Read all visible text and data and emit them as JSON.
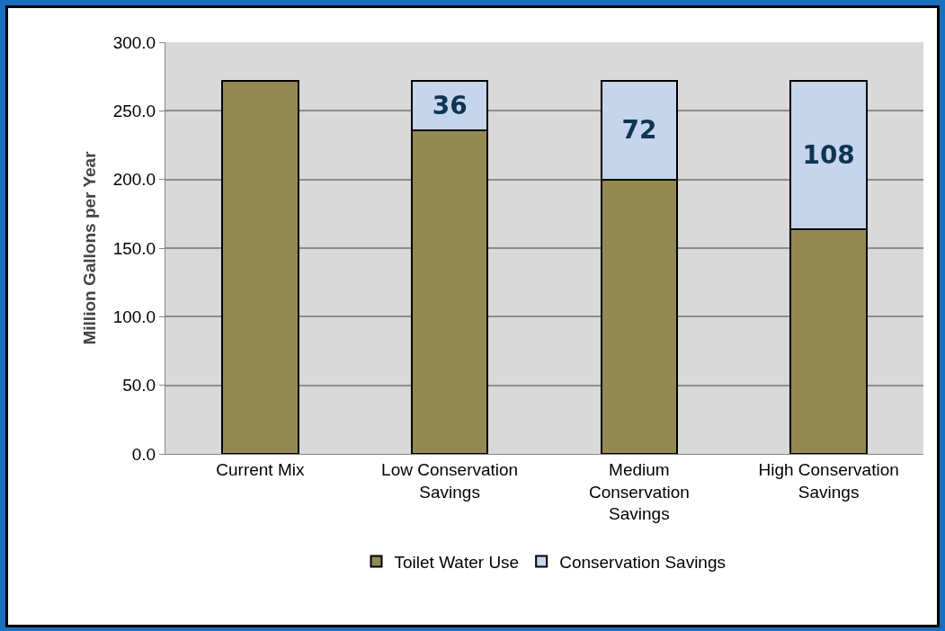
{
  "chart_data": {
    "type": "bar",
    "stacked": true,
    "categories": [
      "Current Mix",
      "Low Conservation Savings",
      "Medium Conservation Savings",
      "High Conservation Savings"
    ],
    "ylabel": "Million Gallons per Year",
    "ylim": [
      0,
      300
    ],
    "yticks": [
      {
        "value": 0,
        "label": "0.0"
      },
      {
        "value": 50,
        "label": "50.0"
      },
      {
        "value": 100,
        "label": "100.0"
      },
      {
        "value": 150,
        "label": "150.0"
      },
      {
        "value": 200,
        "label": "200.0"
      },
      {
        "value": 250,
        "label": "250.0"
      },
      {
        "value": 300,
        "label": "300.0"
      }
    ],
    "series": [
      {
        "name": "Toilet Water Use",
        "color": "#938953",
        "values": [
          272,
          236,
          200,
          164
        ]
      },
      {
        "name": "Conservation Savings",
        "color": "#c6d4ec",
        "values": [
          null,
          36,
          72,
          108
        ],
        "value_labels": [
          null,
          "36",
          "72",
          "108"
        ]
      }
    ],
    "grid": "y",
    "legend": "bottom"
  }
}
